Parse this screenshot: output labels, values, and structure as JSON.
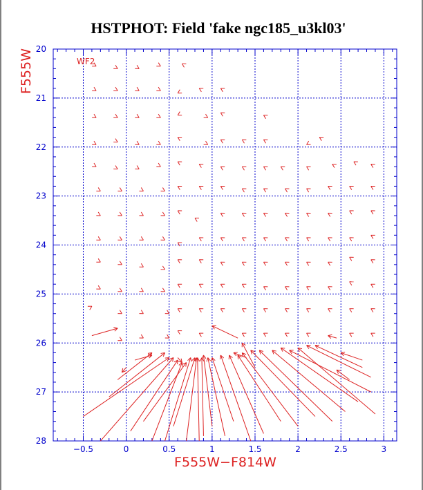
{
  "chart_data": {
    "type": "vector-field",
    "title": "HSTPHOT: Field 'fake ngc185_u3kl03'",
    "xlabel": "F555W−F814W",
    "ylabel": "F555W",
    "annotation": "WF2",
    "xlim": [
      -0.85,
      3.15
    ],
    "ylim": [
      28,
      20
    ],
    "y_inverted": true,
    "grid": true,
    "x_ticks": [
      {
        "value": -0.5,
        "label": "−0.5"
      },
      {
        "value": 0,
        "label": "0"
      },
      {
        "value": 0.5,
        "label": "0.5"
      },
      {
        "value": 1,
        "label": "1"
      },
      {
        "value": 1.5,
        "label": "1.5"
      },
      {
        "value": 2,
        "label": "2"
      },
      {
        "value": 2.5,
        "label": "2.5"
      },
      {
        "value": 3,
        "label": "3"
      }
    ],
    "y_ticks": [
      {
        "value": 20,
        "label": "20"
      },
      {
        "value": 21,
        "label": "21"
      },
      {
        "value": 22,
        "label": "22"
      },
      {
        "value": 23,
        "label": "23"
      },
      {
        "value": 24,
        "label": "24"
      },
      {
        "value": 25,
        "label": "25"
      },
      {
        "value": 26,
        "label": "26"
      },
      {
        "value": 27,
        "label": "27"
      },
      {
        "value": 28,
        "label": "28"
      }
    ],
    "colors": {
      "grid": "#0000cc",
      "ticks": "#0000cc",
      "vectors": "#dd2222",
      "labels": "#dd2222",
      "title": "#000000"
    },
    "vectors": [
      [
        -0.4,
        20.3,
        -0.35,
        20.35
      ],
      [
        -0.15,
        20.35,
        -0.1,
        20.4
      ],
      [
        0.1,
        20.35,
        0.15,
        20.4
      ],
      [
        0.35,
        20.3,
        0.4,
        20.35
      ],
      [
        0.7,
        20.35,
        0.65,
        20.3
      ],
      [
        -0.4,
        20.8,
        -0.35,
        20.85
      ],
      [
        -0.15,
        20.8,
        -0.1,
        20.85
      ],
      [
        0.1,
        20.8,
        0.15,
        20.85
      ],
      [
        0.35,
        20.8,
        0.4,
        20.85
      ],
      [
        0.65,
        20.85,
        0.6,
        20.9
      ],
      [
        0.9,
        20.85,
        0.85,
        20.8
      ],
      [
        1.15,
        20.85,
        1.1,
        20.8
      ],
      [
        -0.4,
        21.35,
        -0.35,
        21.4
      ],
      [
        -0.15,
        21.35,
        -0.1,
        21.4
      ],
      [
        0.1,
        21.35,
        0.15,
        21.4
      ],
      [
        0.35,
        21.35,
        0.4,
        21.4
      ],
      [
        0.65,
        21.3,
        0.6,
        21.35
      ],
      [
        0.9,
        21.35,
        0.95,
        21.4
      ],
      [
        1.15,
        21.35,
        1.1,
        21.3
      ],
      [
        1.65,
        21.4,
        1.6,
        21.35
      ],
      [
        -0.4,
        21.9,
        -0.35,
        21.95
      ],
      [
        -0.15,
        21.85,
        -0.1,
        21.9
      ],
      [
        0.1,
        21.9,
        0.15,
        21.95
      ],
      [
        0.35,
        21.9,
        0.4,
        21.95
      ],
      [
        0.65,
        21.85,
        0.6,
        21.8
      ],
      [
        0.9,
        21.9,
        0.95,
        21.95
      ],
      [
        1.15,
        21.9,
        1.1,
        21.85
      ],
      [
        1.4,
        21.9,
        1.35,
        21.85
      ],
      [
        1.65,
        21.9,
        1.6,
        21.85
      ],
      [
        2.15,
        21.9,
        2.1,
        21.95
      ],
      [
        2.3,
        21.85,
        2.25,
        21.8
      ],
      [
        -0.4,
        22.35,
        -0.35,
        22.4
      ],
      [
        -0.15,
        22.4,
        -0.1,
        22.45
      ],
      [
        0.1,
        22.4,
        0.15,
        22.45
      ],
      [
        0.35,
        22.35,
        0.4,
        22.4
      ],
      [
        0.65,
        22.35,
        0.6,
        22.3
      ],
      [
        0.9,
        22.4,
        0.85,
        22.35
      ],
      [
        1.15,
        22.45,
        1.1,
        22.4
      ],
      [
        1.4,
        22.45,
        1.35,
        22.4
      ],
      [
        1.65,
        22.45,
        1.6,
        22.4
      ],
      [
        1.85,
        22.45,
        1.8,
        22.4
      ],
      [
        2.15,
        22.45,
        2.1,
        22.4
      ],
      [
        2.45,
        22.4,
        2.4,
        22.35
      ],
      [
        2.7,
        22.35,
        2.65,
        22.3
      ],
      [
        2.9,
        22.4,
        2.85,
        22.35
      ],
      [
        -0.35,
        22.85,
        -0.3,
        22.9
      ],
      [
        -0.1,
        22.85,
        -0.05,
        22.9
      ],
      [
        0.15,
        22.85,
        0.2,
        22.9
      ],
      [
        0.4,
        22.85,
        0.45,
        22.9
      ],
      [
        0.65,
        22.85,
        0.6,
        22.8
      ],
      [
        0.9,
        22.85,
        0.85,
        22.8
      ],
      [
        1.15,
        22.85,
        1.1,
        22.8
      ],
      [
        1.4,
        22.9,
        1.35,
        22.85
      ],
      [
        1.65,
        22.9,
        1.6,
        22.85
      ],
      [
        1.9,
        22.9,
        1.85,
        22.85
      ],
      [
        2.15,
        22.9,
        2.1,
        22.85
      ],
      [
        2.4,
        22.85,
        2.35,
        22.8
      ],
      [
        2.65,
        22.85,
        2.6,
        22.8
      ],
      [
        2.9,
        22.85,
        2.85,
        22.8
      ],
      [
        -0.35,
        23.35,
        -0.3,
        23.4
      ],
      [
        -0.1,
        23.35,
        -0.05,
        23.4
      ],
      [
        0.15,
        23.35,
        0.2,
        23.4
      ],
      [
        0.4,
        23.35,
        0.45,
        23.4
      ],
      [
        0.65,
        23.35,
        0.6,
        23.3
      ],
      [
        0.85,
        23.5,
        0.8,
        23.45
      ],
      [
        1.15,
        23.4,
        1.1,
        23.35
      ],
      [
        1.4,
        23.4,
        1.35,
        23.35
      ],
      [
        1.65,
        23.4,
        1.6,
        23.35
      ],
      [
        1.9,
        23.4,
        1.85,
        23.35
      ],
      [
        2.15,
        23.4,
        2.1,
        23.35
      ],
      [
        2.4,
        23.4,
        2.35,
        23.35
      ],
      [
        2.65,
        23.35,
        2.6,
        23.3
      ],
      [
        2.9,
        23.35,
        2.85,
        23.3
      ],
      [
        -0.35,
        23.85,
        -0.3,
        23.9
      ],
      [
        -0.1,
        23.85,
        -0.05,
        23.9
      ],
      [
        0.15,
        23.85,
        0.2,
        23.9
      ],
      [
        0.4,
        23.85,
        0.45,
        23.9
      ],
      [
        0.65,
        24.0,
        0.6,
        23.95
      ],
      [
        0.9,
        23.9,
        0.85,
        23.85
      ],
      [
        1.15,
        23.9,
        1.1,
        23.85
      ],
      [
        1.4,
        23.9,
        1.35,
        23.85
      ],
      [
        1.65,
        23.9,
        1.6,
        23.85
      ],
      [
        1.9,
        23.9,
        1.85,
        23.85
      ],
      [
        2.15,
        23.9,
        2.1,
        23.85
      ],
      [
        2.4,
        23.9,
        2.35,
        23.85
      ],
      [
        2.65,
        23.9,
        2.6,
        23.85
      ],
      [
        2.9,
        23.85,
        2.85,
        23.8
      ],
      [
        -0.35,
        24.3,
        -0.3,
        24.35
      ],
      [
        -0.1,
        24.35,
        -0.05,
        24.4
      ],
      [
        0.15,
        24.4,
        0.2,
        24.45
      ],
      [
        0.4,
        24.45,
        0.45,
        24.5
      ],
      [
        0.65,
        24.35,
        0.6,
        24.3
      ],
      [
        0.9,
        24.35,
        0.85,
        24.3
      ],
      [
        1.15,
        24.4,
        1.1,
        24.35
      ],
      [
        1.4,
        24.4,
        1.35,
        24.35
      ],
      [
        1.65,
        24.4,
        1.6,
        24.35
      ],
      [
        1.9,
        24.4,
        1.85,
        24.35
      ],
      [
        2.15,
        24.4,
        2.1,
        24.35
      ],
      [
        2.4,
        24.4,
        2.35,
        24.35
      ],
      [
        2.65,
        24.3,
        2.6,
        24.25
      ],
      [
        2.9,
        24.35,
        2.85,
        24.3
      ],
      [
        -0.35,
        24.85,
        -0.3,
        24.9
      ],
      [
        -0.1,
        24.9,
        -0.05,
        24.95
      ],
      [
        0.15,
        24.9,
        0.2,
        24.95
      ],
      [
        0.4,
        24.9,
        0.45,
        24.95
      ],
      [
        0.65,
        24.85,
        0.6,
        24.8
      ],
      [
        0.9,
        24.85,
        0.85,
        24.8
      ],
      [
        1.15,
        24.85,
        1.1,
        24.8
      ],
      [
        1.4,
        24.85,
        1.35,
        24.8
      ],
      [
        1.65,
        24.9,
        1.6,
        24.85
      ],
      [
        1.9,
        24.9,
        1.85,
        24.85
      ],
      [
        2.15,
        24.9,
        2.1,
        24.85
      ],
      [
        2.4,
        24.9,
        2.35,
        24.85
      ],
      [
        2.65,
        24.8,
        2.6,
        24.75
      ],
      [
        2.9,
        24.85,
        2.85,
        24.8
      ],
      [
        -0.45,
        25.3,
        -0.4,
        25.25
      ],
      [
        -0.1,
        25.35,
        -0.05,
        25.4
      ],
      [
        0.15,
        25.35,
        0.2,
        25.4
      ],
      [
        0.45,
        25.35,
        0.5,
        25.4
      ],
      [
        0.65,
        25.35,
        0.6,
        25.3
      ],
      [
        0.9,
        25.35,
        0.85,
        25.3
      ],
      [
        1.15,
        25.35,
        1.1,
        25.3
      ],
      [
        1.4,
        25.35,
        1.35,
        25.3
      ],
      [
        1.65,
        25.35,
        1.6,
        25.3
      ],
      [
        1.9,
        25.35,
        1.85,
        25.3
      ],
      [
        2.15,
        25.35,
        2.1,
        25.3
      ],
      [
        2.4,
        25.35,
        2.35,
        25.3
      ],
      [
        2.65,
        25.35,
        2.6,
        25.3
      ],
      [
        2.9,
        25.35,
        2.85,
        25.3
      ],
      [
        -0.4,
        25.85,
        -0.1,
        25.7
      ],
      [
        -0.1,
        25.9,
        -0.05,
        25.95
      ],
      [
        0.15,
        25.85,
        0.2,
        25.9
      ],
      [
        0.45,
        25.85,
        0.5,
        25.9
      ],
      [
        0.65,
        25.8,
        0.6,
        25.75
      ],
      [
        0.9,
        25.85,
        0.85,
        25.8
      ],
      [
        1.3,
        25.9,
        1.0,
        25.65
      ],
      [
        1.4,
        25.85,
        1.35,
        25.8
      ],
      [
        1.65,
        25.85,
        1.6,
        25.8
      ],
      [
        1.9,
        25.85,
        1.85,
        25.8
      ],
      [
        2.15,
        25.85,
        2.1,
        25.8
      ],
      [
        2.45,
        25.9,
        2.35,
        25.85
      ],
      [
        2.65,
        25.85,
        2.6,
        25.8
      ],
      [
        2.9,
        25.85,
        2.85,
        25.8
      ],
      [
        0.0,
        26.5,
        -0.05,
        26.6
      ],
      [
        -0.1,
        26.75,
        0.3,
        26.2
      ],
      [
        -0.2,
        27.1,
        0.45,
        26.2
      ],
      [
        -0.5,
        27.5,
        0.5,
        26.3
      ],
      [
        -0.3,
        28.0,
        0.55,
        26.3
      ],
      [
        0.05,
        27.8,
        0.6,
        26.35
      ],
      [
        0.3,
        28.0,
        0.65,
        26.4
      ],
      [
        0.2,
        27.6,
        0.7,
        26.4
      ],
      [
        0.45,
        28.0,
        0.75,
        26.3
      ],
      [
        0.55,
        27.7,
        0.8,
        26.3
      ],
      [
        0.7,
        28.0,
        0.82,
        26.3
      ],
      [
        0.85,
        28.0,
        0.83,
        26.3
      ],
      [
        0.9,
        27.9,
        0.88,
        26.3
      ],
      [
        1.0,
        27.7,
        0.9,
        26.25
      ],
      [
        1.15,
        27.9,
        0.95,
        26.3
      ],
      [
        1.25,
        27.6,
        1.0,
        26.3
      ],
      [
        1.45,
        28.0,
        1.1,
        26.25
      ],
      [
        1.6,
        27.85,
        1.2,
        26.25
      ],
      [
        1.8,
        27.6,
        1.3,
        26.25
      ],
      [
        2.0,
        27.7,
        1.35,
        26.2
      ],
      [
        2.2,
        27.5,
        1.45,
        26.15
      ],
      [
        2.4,
        27.6,
        1.55,
        26.15
      ],
      [
        2.55,
        27.4,
        1.7,
        26.15
      ],
      [
        2.7,
        27.2,
        1.8,
        26.1
      ],
      [
        2.85,
        27.0,
        1.9,
        26.15
      ],
      [
        2.9,
        27.45,
        2.0,
        26.1
      ],
      [
        2.85,
        26.7,
        2.1,
        26.05
      ],
      [
        2.75,
        26.5,
        2.2,
        26.05
      ],
      [
        2.6,
        26.75,
        2.45,
        26.55
      ],
      [
        2.75,
        26.35,
        2.5,
        26.2
      ],
      [
        1.5,
        26.5,
        1.35,
        26.0
      ],
      [
        1.4,
        26.3,
        1.25,
        26.2
      ],
      [
        0.1,
        26.35,
        0.3,
        26.25
      ],
      [
        0.6,
        26.3,
        0.65,
        26.4
      ]
    ]
  }
}
